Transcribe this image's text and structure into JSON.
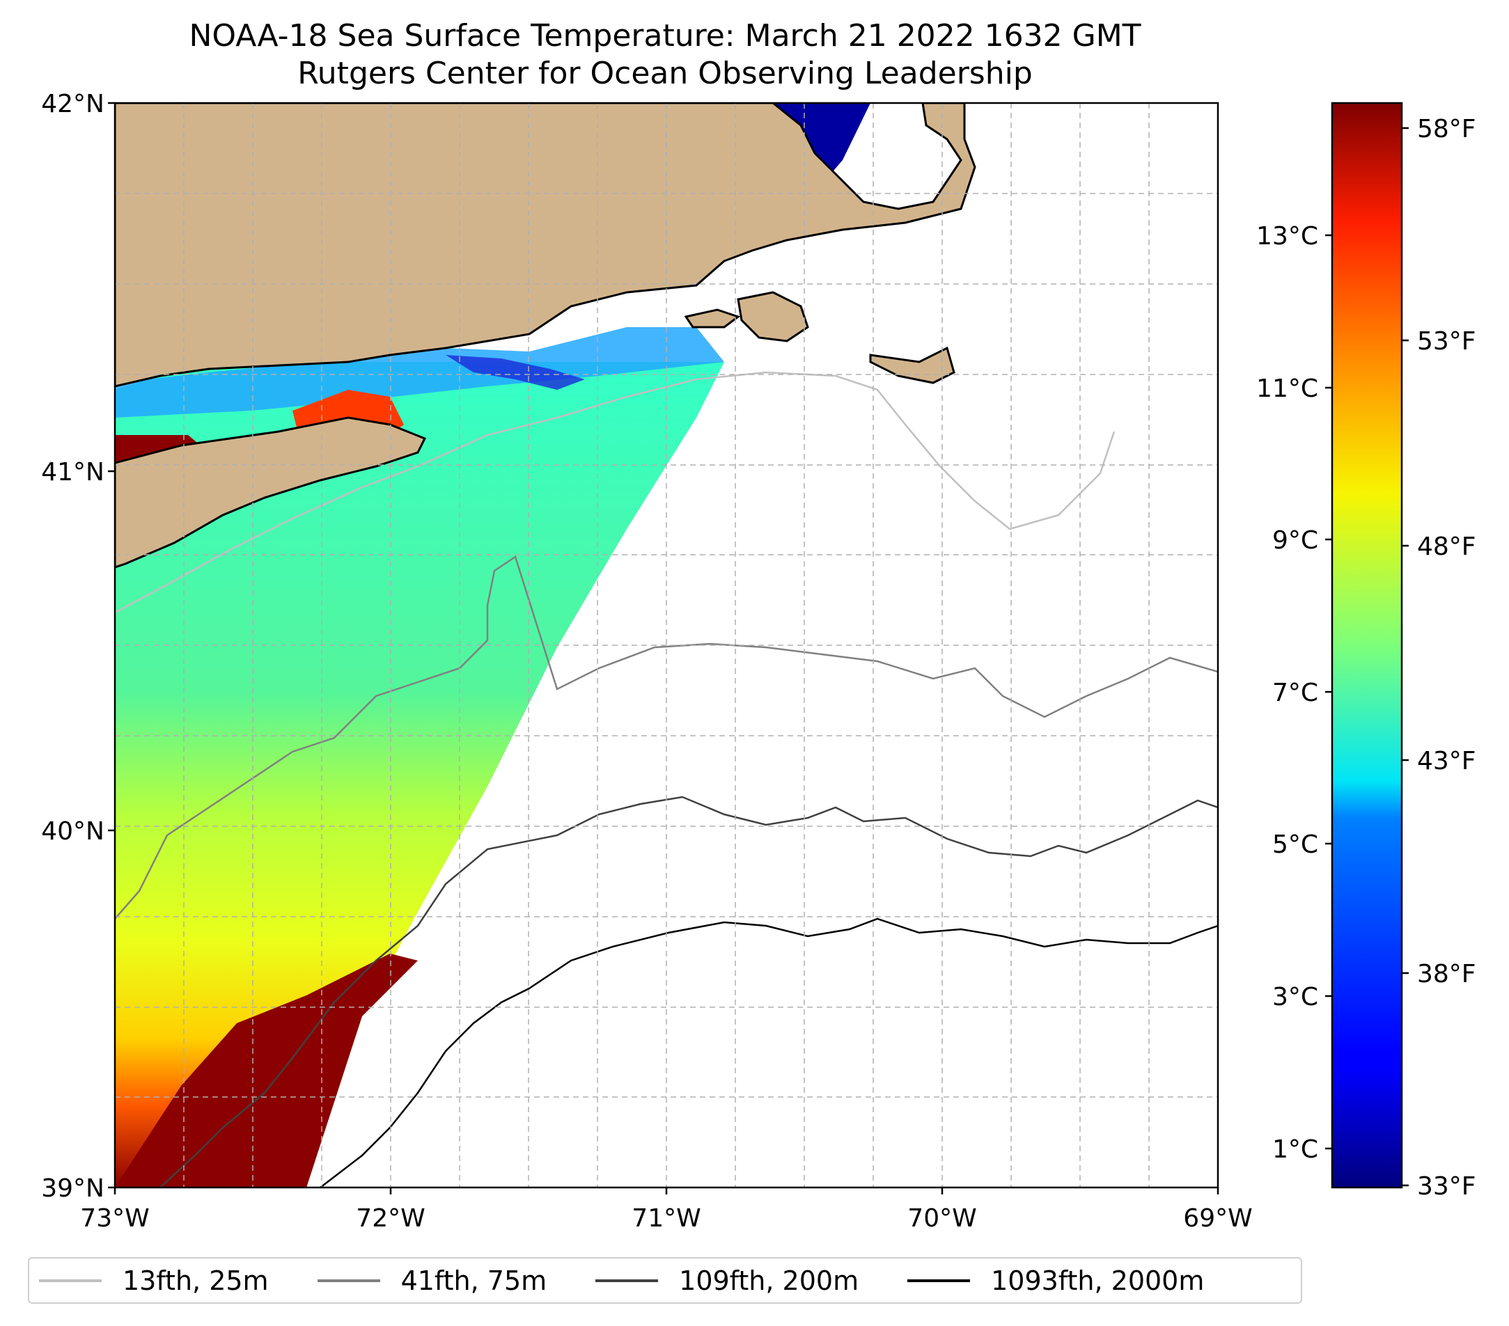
{
  "title": {
    "line1": "NOAA-18 Sea Surface Temperature: March 21 2022 1632 GMT",
    "line2": "Rutgers Center for Ocean Observing Leadership"
  },
  "axes": {
    "latitude_ticks": [
      "42°N",
      "41°N",
      "40°N",
      "39°N"
    ],
    "longitude_ticks": [
      "73°W",
      "72°W",
      "71°W",
      "70°W",
      "69°W"
    ],
    "extent": {
      "lon": [
        -73,
        -69
      ],
      "lat": [
        39,
        42
      ]
    }
  },
  "colorbar": {
    "celsius_ticks": [
      "13°C",
      "11°C",
      "9°C",
      "7°C",
      "5°C",
      "3°C",
      "1°C"
    ],
    "fahrenheit_ticks": [
      "58°F",
      "53°F",
      "48°F",
      "43°F",
      "38°F",
      "33°F"
    ],
    "range_f": [
      33,
      58.5
    ],
    "colormap": "jet"
  },
  "legend": [
    {
      "label": "13fth, 25m",
      "color": "#c0c0c0"
    },
    {
      "label": "41fth, 75m",
      "color": "#808080"
    },
    {
      "label": "109fth, 200m",
      "color": "#404040"
    },
    {
      "label": "1093fth, 2000m",
      "color": "#000000"
    }
  ],
  "colors": {
    "land": "#d2b48c",
    "ocean": "#ffffff",
    "grid": "#b0b0b0"
  }
}
